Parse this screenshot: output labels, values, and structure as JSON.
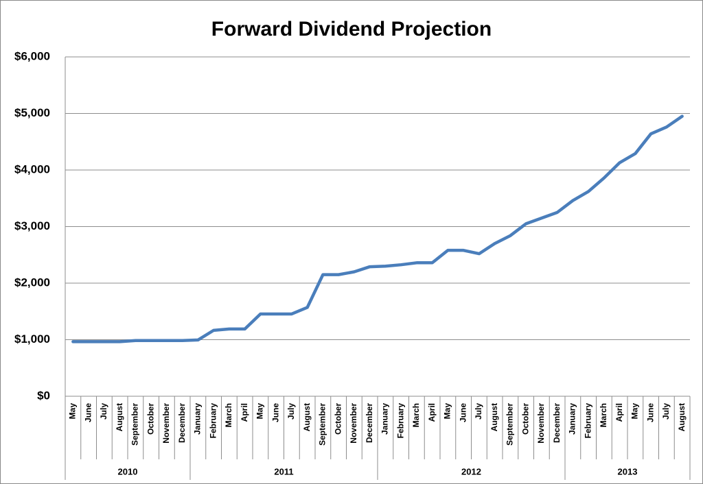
{
  "chart_data": {
    "type": "line",
    "title": "Forward Dividend Projection",
    "categories": [
      "May",
      "June",
      "July",
      "August",
      "September",
      "October",
      "November",
      "December",
      "January",
      "February",
      "March",
      "April",
      "May",
      "June",
      "July",
      "August",
      "September",
      "October",
      "November",
      "December",
      "January",
      "February",
      "March",
      "April",
      "May",
      "June",
      "July",
      "August",
      "September",
      "October",
      "November",
      "December",
      "January",
      "February",
      "March",
      "April",
      "May",
      "June",
      "July",
      "August"
    ],
    "groups": [
      {
        "label": "2010",
        "span": 8
      },
      {
        "label": "2011",
        "span": 12
      },
      {
        "label": "2012",
        "span": 12
      },
      {
        "label": "2013",
        "span": 8
      }
    ],
    "series": [
      {
        "name": "Forward Dividend",
        "color": "#4a7ebb",
        "values": [
          965,
          965,
          965,
          965,
          985,
          985,
          985,
          985,
          995,
          1165,
          1190,
          1190,
          1455,
          1455,
          1455,
          1570,
          2150,
          2150,
          2200,
          2290,
          2300,
          2325,
          2360,
          2360,
          2580,
          2580,
          2520,
          2700,
          2840,
          3050,
          3150,
          3250,
          3460,
          3620,
          3860,
          4130,
          4290,
          4640,
          4760,
          4950
        ]
      }
    ],
    "ylim": [
      0,
      6000
    ],
    "yticks": [
      {
        "value": 0,
        "label": "$0"
      },
      {
        "value": 1000,
        "label": "$1,000"
      },
      {
        "value": 2000,
        "label": "$2,000"
      },
      {
        "value": 3000,
        "label": "$3,000"
      },
      {
        "value": 4000,
        "label": "$4,000"
      },
      {
        "value": 5000,
        "label": "$5,000"
      },
      {
        "value": 6000,
        "label": "$6,000"
      }
    ],
    "grid": true
  }
}
